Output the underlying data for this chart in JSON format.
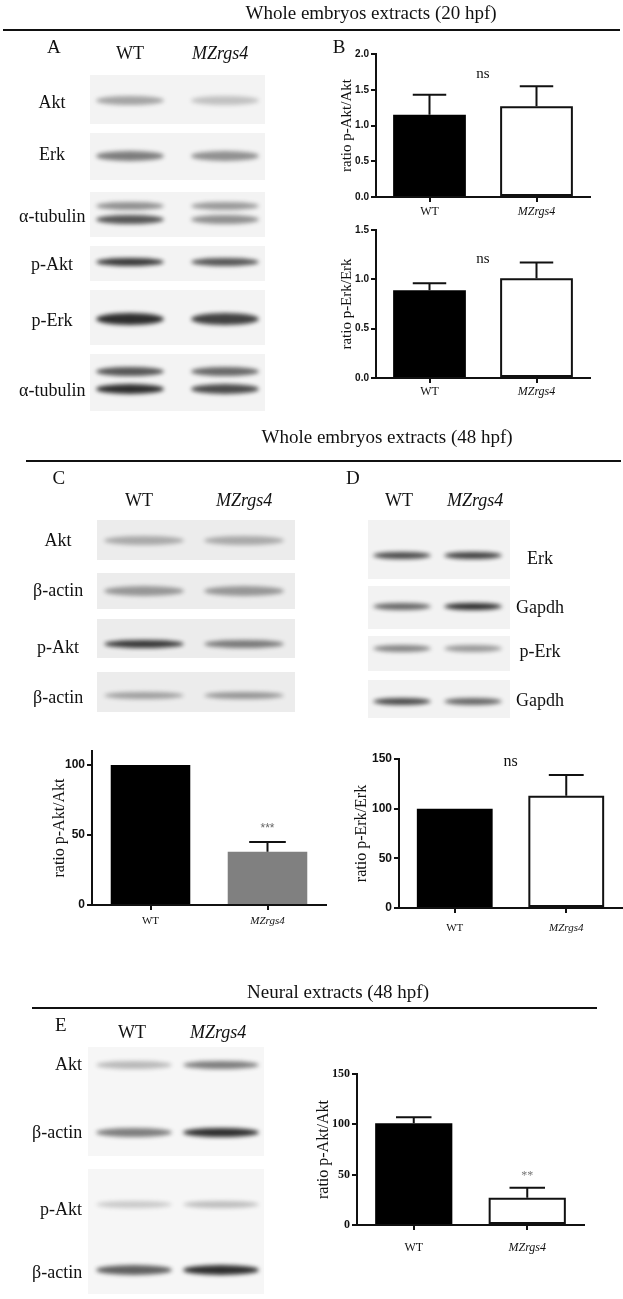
{
  "chart_data": [
    {
      "type": "other",
      "title": "Whole embryos extracts (20 hpf)"
    },
    {
      "type": "other",
      "annotations": [
        "A",
        "WT",
        "MZrgs4",
        "Akt",
        "Erk",
        "α-tubulin",
        "p-Akt",
        "p-Erk",
        "α-tubulin"
      ]
    },
    {
      "type": "bar",
      "ylabel": "ratio p-Akt/Akt",
      "categories": [
        "WT",
        "MZrgs4"
      ],
      "values": [
        1.15,
        1.27
      ],
      "colors": [
        "#000000",
        "#ffffff"
      ],
      "errors": [
        [
          1.15,
          1.43
        ],
        [
          1.27,
          1.55
        ]
      ],
      "ylim": [
        0,
        2
      ],
      "yticks": [
        {
          "value": 0,
          "label": "0.0"
        },
        0.5,
        {
          "value": 1,
          "label": "1.0"
        },
        1.5,
        {
          "value": 2,
          "label": "2.0"
        }
      ],
      "annotations": [
        "B",
        "ns"
      ]
    },
    {
      "type": "bar",
      "ylabel": "ratio p-Erk/Erk",
      "categories": [
        "WT",
        "MZrgs4"
      ],
      "values": [
        0.89,
        1.01
      ],
      "colors": [
        "#000000",
        "#ffffff"
      ],
      "errors": [
        [
          0.89,
          0.96
        ],
        [
          1.01,
          1.17
        ]
      ],
      "ylim": [
        0,
        1.5
      ],
      "yticks": [
        {
          "value": 0,
          "label": "0.0"
        },
        0.5,
        {
          "value": 1,
          "label": "1.0"
        },
        1.5
      ],
      "annotations": [
        "ns"
      ]
    },
    {
      "type": "other",
      "title": "Whole embryos extracts (48 hpf)"
    },
    {
      "type": "other",
      "annotations": [
        "C",
        "WT",
        "MZrgs4",
        "Akt",
        "β-actin",
        "p-Akt",
        "β-actin"
      ]
    },
    {
      "type": "other",
      "annotations": [
        "D",
        "WT",
        "MZrgs4",
        "Erk",
        "Gapdh",
        "p-Erk",
        "Gapdh"
      ]
    },
    {
      "type": "bar",
      "ylabel": "ratio p-Akt/Akt",
      "categories": [
        "WT",
        "MZrgs4"
      ],
      "values": [
        100,
        38
      ],
      "colors": [
        "#000000",
        "#808080"
      ],
      "errors": [
        null,
        [
          38,
          45
        ]
      ],
      "ylim": [
        0,
        110
      ],
      "yticks": [
        0,
        50,
        100
      ],
      "annotations": [
        "***"
      ]
    },
    {
      "type": "bar",
      "ylabel": "ratio p-Erk/Erk",
      "categories": [
        "WT",
        "MZrgs4"
      ],
      "values": [
        100,
        113
      ],
      "colors": [
        "#000000",
        "#ffffff"
      ],
      "errors": [
        null,
        [
          113,
          134
        ]
      ],
      "ylim": [
        0,
        150
      ],
      "yticks": [
        0,
        50,
        100,
        150
      ],
      "annotations": [
        "ns"
      ]
    },
    {
      "type": "other",
      "title": "Neural extracts (48 hpf)"
    },
    {
      "type": "other",
      "annotations": [
        "E",
        "WT",
        "MZrgs4",
        "Akt",
        "β-actin",
        "p-Akt",
        "β-actin"
      ]
    },
    {
      "type": "bar",
      "ylabel": "ratio p-Akt/Akt",
      "categories": [
        "WT",
        "MZrgs4"
      ],
      "values": [
        101,
        27
      ],
      "colors": [
        "#000000",
        "#ffffff"
      ],
      "errors": [
        [
          101,
          107
        ],
        [
          27,
          37
        ]
      ],
      "ylim": [
        0,
        150
      ],
      "yticks": [
        0,
        50,
        100,
        150
      ],
      "annotations": [
        "**"
      ]
    }
  ]
}
